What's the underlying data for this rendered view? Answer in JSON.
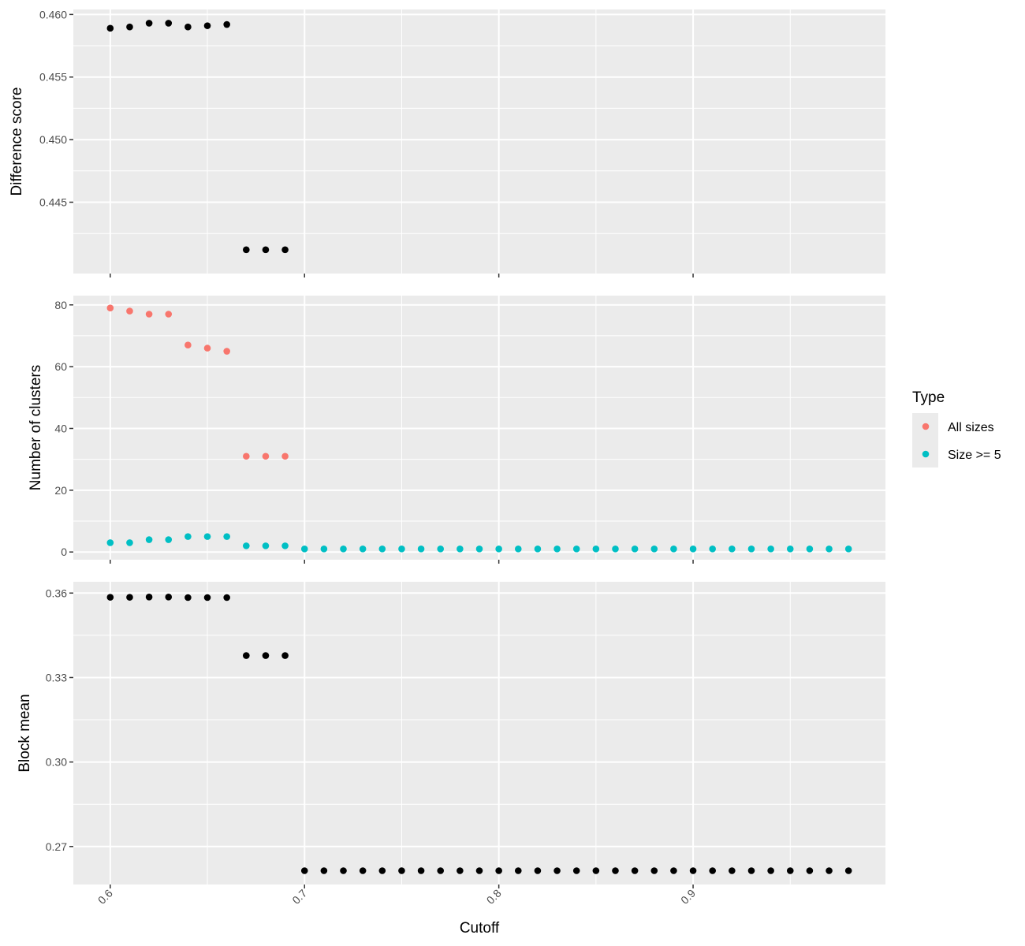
{
  "chart_data": {
    "type": "scatter",
    "x": [
      0.6,
      0.61,
      0.62,
      0.63,
      0.64,
      0.65,
      0.66,
      0.67,
      0.68,
      0.69,
      0.7,
      0.71,
      0.72,
      0.73,
      0.74,
      0.75,
      0.76,
      0.77,
      0.78,
      0.79,
      0.8,
      0.81,
      0.82,
      0.83,
      0.84,
      0.85,
      0.86,
      0.87,
      0.88,
      0.89,
      0.9,
      0.91,
      0.92,
      0.93,
      0.94,
      0.95,
      0.96,
      0.97,
      0.98
    ],
    "xlabel": "Cutoff",
    "xlim": [
      0.581,
      0.999
    ],
    "xticks": [
      0.6,
      0.7,
      0.8,
      0.9
    ],
    "xtick_labels": [
      "0.6",
      "0.7",
      "0.8",
      "0.9"
    ],
    "panels": [
      {
        "ylabel": "Difference score",
        "ylim": [
          0.4393,
          0.4604
        ],
        "yticks": [
          0.445,
          0.45,
          0.455,
          0.46
        ],
        "ytick_labels": [
          "0.445",
          "0.450",
          "0.455",
          "0.460"
        ],
        "series": [
          {
            "color": "#000000",
            "values": [
              0.4589,
              0.459,
              0.4593,
              0.4593,
              0.459,
              0.4591,
              0.4592,
              0.4412,
              0.4412,
              0.4412
            ]
          }
        ]
      },
      {
        "ylabel": "Number of clusters",
        "ylim": [
          -2.5,
          83
        ],
        "yticks": [
          0,
          20,
          40,
          60,
          80
        ],
        "ytick_labels": [
          "0",
          "20",
          "40",
          "60",
          "80"
        ],
        "series": [
          {
            "name": "All sizes",
            "color": "#F8766D",
            "values": [
              79,
              78,
              77,
              77,
              67,
              66,
              65,
              31,
              31,
              31
            ]
          },
          {
            "name": "Size >= 5",
            "color": "#00BFC4",
            "values": [
              3,
              3,
              4,
              4,
              5,
              5,
              5,
              2,
              2,
              2,
              1,
              1,
              1,
              1,
              1,
              1,
              1,
              1,
              1,
              1,
              1,
              1,
              1,
              1,
              1,
              1,
              1,
              1,
              1,
              1,
              1,
              1,
              1,
              1,
              1,
              1,
              1,
              1,
              1
            ]
          }
        ]
      },
      {
        "ylabel": "Block mean",
        "ylim": [
          0.2565,
          0.364
        ],
        "yticks": [
          0.27,
          0.3,
          0.33,
          0.36
        ],
        "ytick_labels": [
          "0.27",
          "0.30",
          "0.33",
          "0.36"
        ],
        "series": [
          {
            "color": "#000000",
            "values": [
              0.3585,
              0.3585,
              0.3586,
              0.3586,
              0.3584,
              0.3584,
              0.3584,
              0.3378,
              0.3378,
              0.3378,
              0.2614,
              0.2614,
              0.2614,
              0.2614,
              0.2614,
              0.2614,
              0.2614,
              0.2614,
              0.2614,
              0.2614,
              0.2614,
              0.2614,
              0.2614,
              0.2614,
              0.2614,
              0.2614,
              0.2614,
              0.2614,
              0.2614,
              0.2614,
              0.2614,
              0.2614,
              0.2614,
              0.2614,
              0.2614,
              0.2614,
              0.2614,
              0.2614,
              0.2614
            ]
          }
        ]
      }
    ],
    "legend": {
      "title": "Type",
      "position": "right",
      "items": [
        {
          "label": "All sizes",
          "color": "#F8766D"
        },
        {
          "label": "Size >= 5",
          "color": "#00BFC4"
        }
      ]
    },
    "grid": true
  }
}
